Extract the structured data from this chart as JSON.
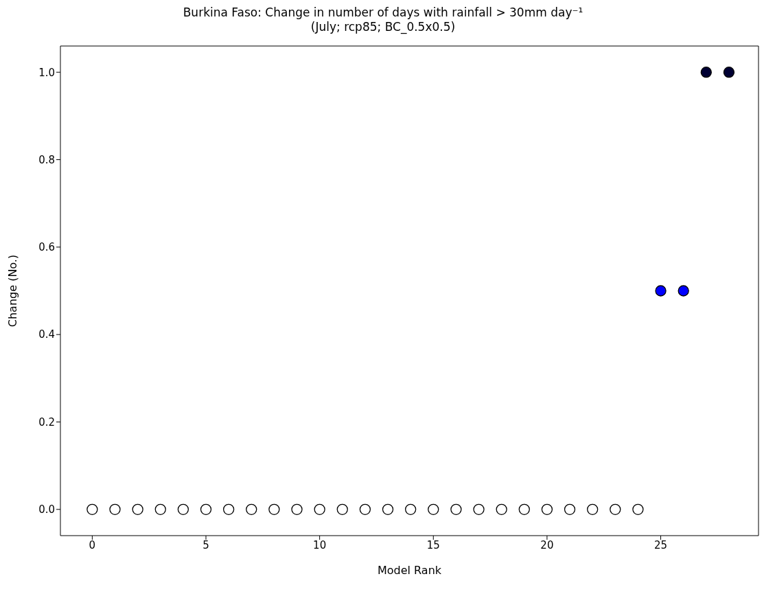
{
  "chart_data": {
    "type": "scatter",
    "title": "Burkina Faso: Change in number of days with rainfall  >  30mm day⁻¹",
    "subtitle": "(July; rcp85; BC_0.5x0.5)",
    "xlabel": "Model Rank",
    "ylabel": "Change (No.)",
    "x": [
      0,
      1,
      2,
      3,
      4,
      5,
      6,
      7,
      8,
      9,
      10,
      11,
      12,
      13,
      14,
      15,
      16,
      17,
      18,
      19,
      20,
      21,
      22,
      23,
      24,
      25,
      26,
      27,
      28
    ],
    "values": [
      0,
      0,
      0,
      0,
      0,
      0,
      0,
      0,
      0,
      0,
      0,
      0,
      0,
      0,
      0,
      0,
      0,
      0,
      0,
      0,
      0,
      0,
      0,
      0,
      0,
      0.5,
      0.5,
      1,
      1
    ],
    "colors": [
      "#ffffff",
      "#ffffff",
      "#ffffff",
      "#ffffff",
      "#ffffff",
      "#ffffff",
      "#ffffff",
      "#ffffff",
      "#ffffff",
      "#ffffff",
      "#ffffff",
      "#ffffff",
      "#ffffff",
      "#ffffff",
      "#ffffff",
      "#ffffff",
      "#ffffff",
      "#ffffff",
      "#ffffff",
      "#ffffff",
      "#ffffff",
      "#ffffff",
      "#ffffff",
      "#ffffff",
      "#ffffff",
      "#0000ff",
      "#0000ff",
      "#000033",
      "#000033"
    ],
    "marker": "circle",
    "xlim": [
      -1.4,
      29.3
    ],
    "ylim": [
      -0.06,
      1.06
    ],
    "xticks": [
      0,
      5,
      10,
      15,
      20,
      25
    ],
    "yticks": [
      {
        "value": 0,
        "label": "0.0"
      },
      {
        "value": 0.2,
        "label": "0.2"
      },
      {
        "value": 0.4,
        "label": "0.4"
      },
      {
        "value": 0.6,
        "label": "0.6"
      },
      {
        "value": 0.8,
        "label": "0.8"
      },
      {
        "value": 1,
        "label": "1.0"
      }
    ]
  }
}
